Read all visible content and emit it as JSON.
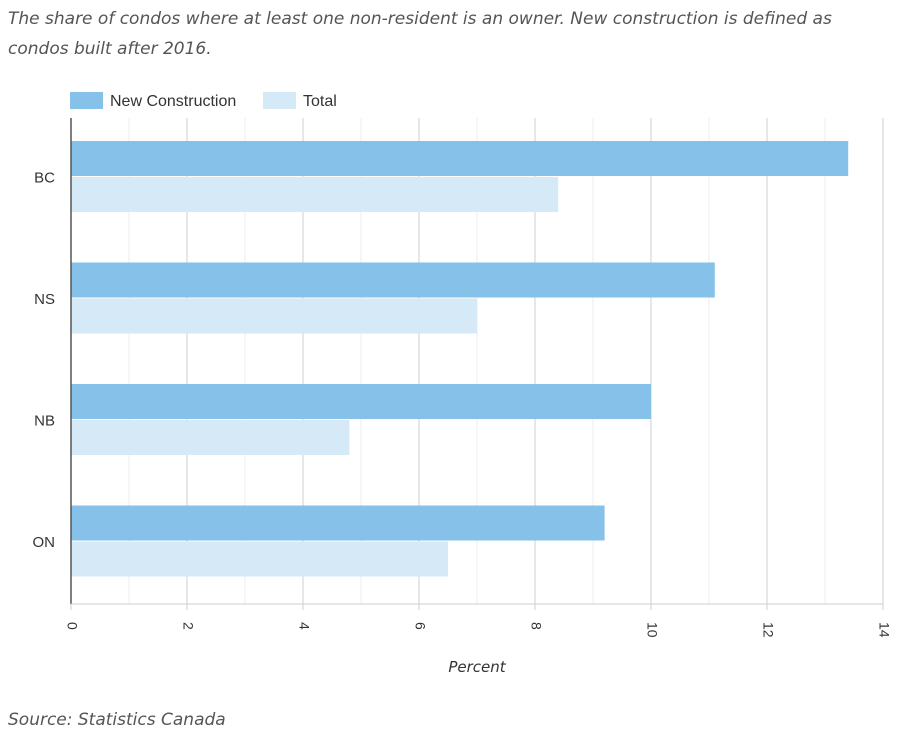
{
  "subtitle": "The share of condos where at least one non-resident is an owner. New construction is defined as condos built after 2016.",
  "source": "Source: Statistics Canada",
  "colors": {
    "new_construction": "#85c1e9",
    "total": "#d6e9f7",
    "grid": "#d9d9d9",
    "axis": "#555555"
  },
  "chart_data": {
    "type": "bar",
    "orientation": "horizontal",
    "categories": [
      "BC",
      "NS",
      "NB",
      "ON"
    ],
    "series": [
      {
        "name": "New Construction",
        "values": [
          13.4,
          11.1,
          10.0,
          9.2
        ]
      },
      {
        "name": "Total",
        "values": [
          8.4,
          7.0,
          4.8,
          6.5
        ]
      }
    ],
    "xlabel": "Percent",
    "ylabel": "",
    "xlim": [
      0,
      14
    ],
    "xticks": [
      "0",
      "2",
      "4",
      "6",
      "8",
      "10",
      "12",
      "14"
    ],
    "grid": true,
    "legend_position": "top-left"
  }
}
